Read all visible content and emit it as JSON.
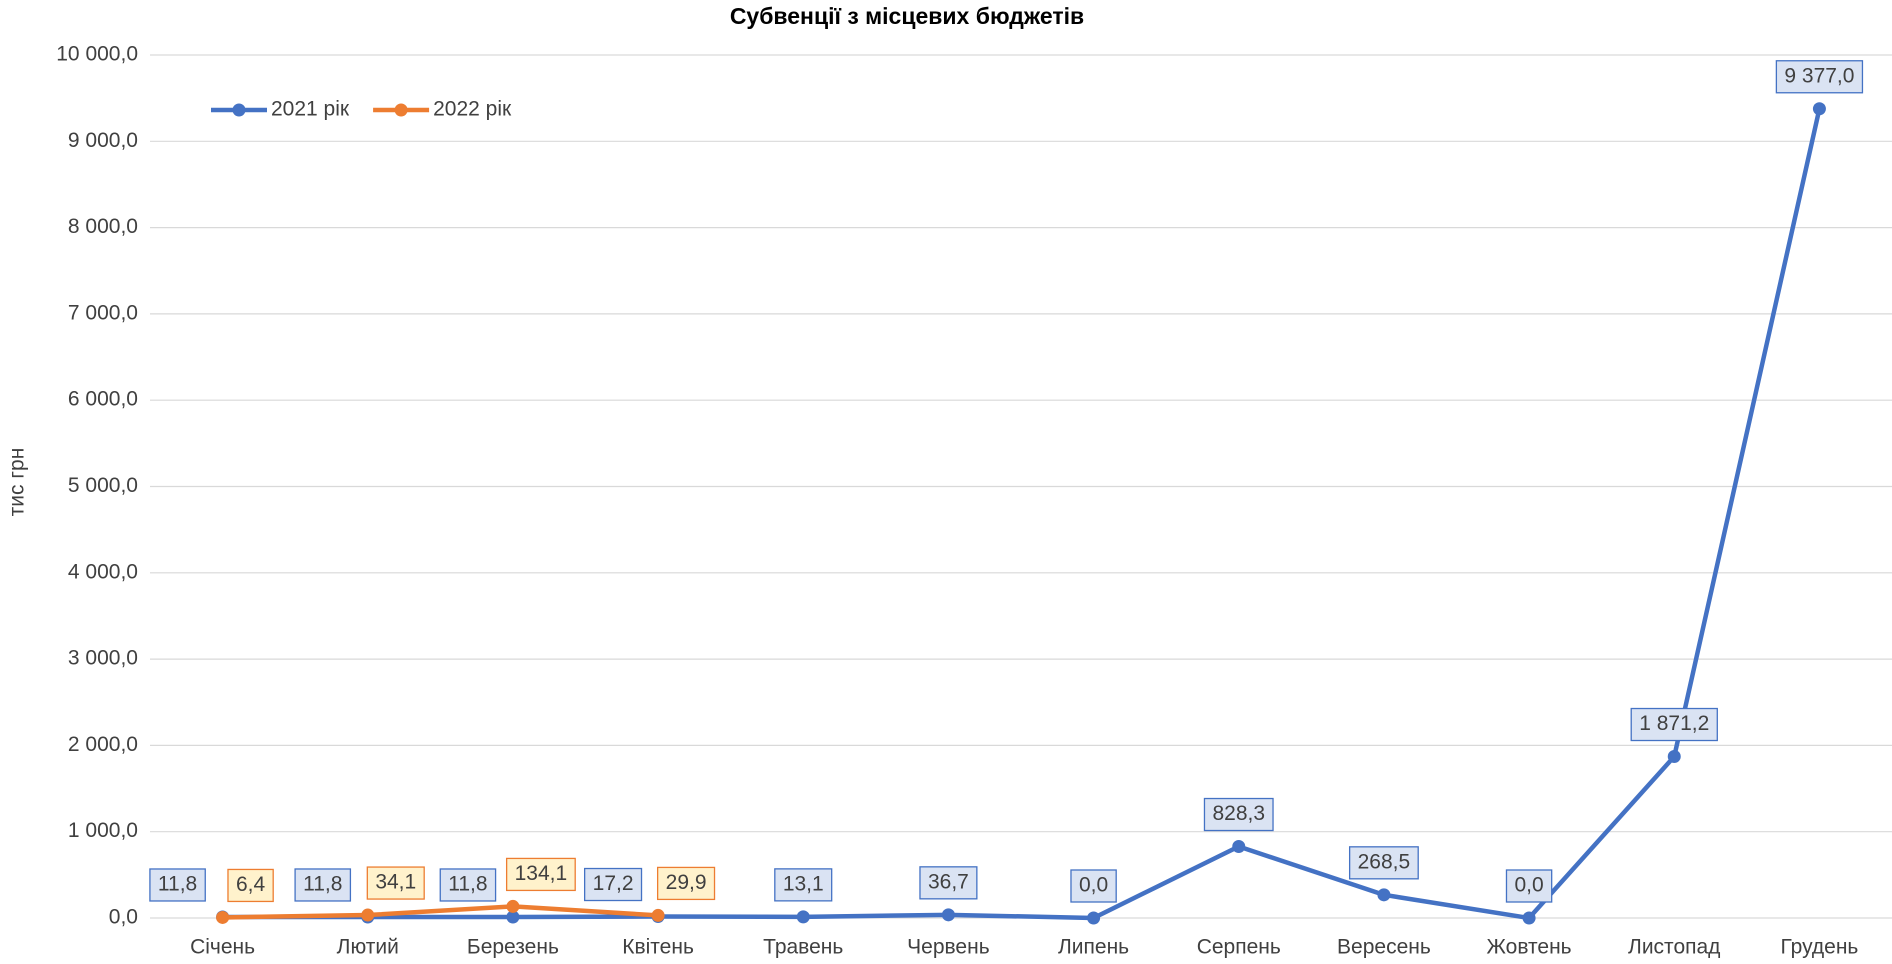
{
  "chart_data": {
    "type": "line",
    "title": "Субвенції з місцевих бюджетів",
    "y_label": "тис грн",
    "categories": [
      "Січень",
      "Лютий",
      "Березень",
      "Квітень",
      "Травень",
      "Червень",
      "Липень",
      "Серпень",
      "Вересень",
      "Жовтень",
      "Листопад",
      "Грудень"
    ],
    "series": [
      {
        "name": "2021 рік",
        "color": "#4472c4",
        "values": [
          11.8,
          11.8,
          11.8,
          17.2,
          13.1,
          36.7,
          0.0,
          828.3,
          268.5,
          0.0,
          1871.2,
          9377.0
        ],
        "value_labels": [
          "11,8",
          "11,8",
          "11,8",
          "17,2",
          "13,1",
          "36,7",
          "0,0",
          "828,3",
          "268,5",
          "0,0",
          "1 871,2",
          "9 377,0"
        ]
      },
      {
        "name": "2022 рік",
        "color": "#ed7d31",
        "values": [
          6.4,
          34.1,
          134.1,
          29.9,
          null,
          null,
          null,
          null,
          null,
          null,
          null,
          null
        ],
        "value_labels": [
          "6,4",
          "34,1",
          "134,1",
          "29,9",
          null,
          null,
          null,
          null,
          null,
          null,
          null,
          null
        ]
      }
    ],
    "ylim": [
      0,
      10000
    ],
    "yticks": [
      {
        "value": 0,
        "label": "0,0"
      },
      {
        "value": 1000,
        "label": "1 000,0"
      },
      {
        "value": 2000,
        "label": "2 000,0"
      },
      {
        "value": 3000,
        "label": "3 000,0"
      },
      {
        "value": 4000,
        "label": "4 000,0"
      },
      {
        "value": 5000,
        "label": "5 000,0"
      },
      {
        "value": 6000,
        "label": "6 000,0"
      },
      {
        "value": 7000,
        "label": "7 000,0"
      },
      {
        "value": 8000,
        "label": "8 000,0"
      },
      {
        "value": 9000,
        "label": "9 000,0"
      },
      {
        "value": 10000,
        "label": "10 000,0"
      }
    ],
    "grid": true,
    "legend": "top-left"
  }
}
